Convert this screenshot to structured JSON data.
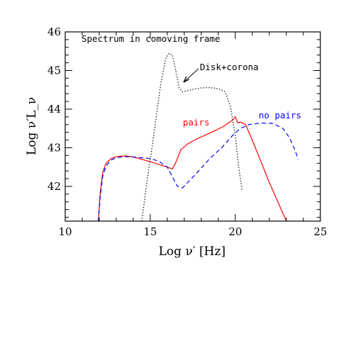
{
  "chart_data": {
    "type": "line",
    "title": "",
    "xlabel": "Log ν′ [Hz]",
    "ylabel": "Log ν′L_ν",
    "xlim": [
      10,
      25
    ],
    "ylim": [
      41.1,
      46
    ],
    "x_ticks": [
      10,
      15,
      20,
      25
    ],
    "y_ticks": [
      42,
      43,
      44,
      45,
      46
    ],
    "grid": false,
    "annotations": {
      "frame_label": "Spectrum in comoving frame",
      "disk_label": "Disk+corona",
      "pairs_label": "pairs",
      "no_pairs_label": "no pairs"
    },
    "series": [
      {
        "name": "pairs",
        "color": "#ff0000",
        "style": "solid",
        "x": [
          11.95,
          12.05,
          12.2,
          12.4,
          12.7,
          13.0,
          13.5,
          14.0,
          14.5,
          15.0,
          15.5,
          16.0,
          16.3,
          16.5,
          16.8,
          17.2,
          17.7,
          18.5,
          19.3,
          19.8,
          20.0,
          20.15,
          20.3,
          20.6,
          21.0,
          21.5,
          22.0,
          22.5,
          23.0
        ],
        "y": [
          41.1,
          41.8,
          42.35,
          42.6,
          42.72,
          42.77,
          42.79,
          42.76,
          42.7,
          42.64,
          42.57,
          42.5,
          42.45,
          42.62,
          42.95,
          43.1,
          43.22,
          43.38,
          43.55,
          43.7,
          43.8,
          43.64,
          43.67,
          43.6,
          43.2,
          42.65,
          42.1,
          41.6,
          41.1
        ]
      },
      {
        "name": "no pairs",
        "color": "#0000ff",
        "style": "dashed",
        "x": [
          11.95,
          12.05,
          12.2,
          12.4,
          12.7,
          13.0,
          13.5,
          14.0,
          14.5,
          15.0,
          15.5,
          16.0,
          16.3,
          16.6,
          16.9,
          17.2,
          17.8,
          18.5,
          19.2,
          19.8,
          20.3,
          20.8,
          21.5,
          22.2,
          22.8,
          23.2,
          23.5,
          23.7
        ],
        "y": [
          41.1,
          41.7,
          42.25,
          42.53,
          42.68,
          42.74,
          42.77,
          42.76,
          42.74,
          42.72,
          42.65,
          42.5,
          42.25,
          42.0,
          41.96,
          42.1,
          42.38,
          42.72,
          43.0,
          43.3,
          43.5,
          43.6,
          43.64,
          43.63,
          43.5,
          43.25,
          42.95,
          42.7
        ]
      },
      {
        "name": "Disk+corona",
        "color": "#000000",
        "style": "dotted",
        "x": [
          14.5,
          14.8,
          15.2,
          15.6,
          15.9,
          16.1,
          16.3,
          16.5,
          16.7,
          16.9,
          17.2,
          17.6,
          18.0,
          18.5,
          19.0,
          19.4,
          19.7,
          20.0,
          20.2,
          20.4
        ],
        "y": [
          41.1,
          42.1,
          43.3,
          44.6,
          45.3,
          45.45,
          45.4,
          45.0,
          44.55,
          44.45,
          44.48,
          44.52,
          44.55,
          44.56,
          44.53,
          44.45,
          44.1,
          43.3,
          42.5,
          41.9
        ]
      }
    ]
  }
}
